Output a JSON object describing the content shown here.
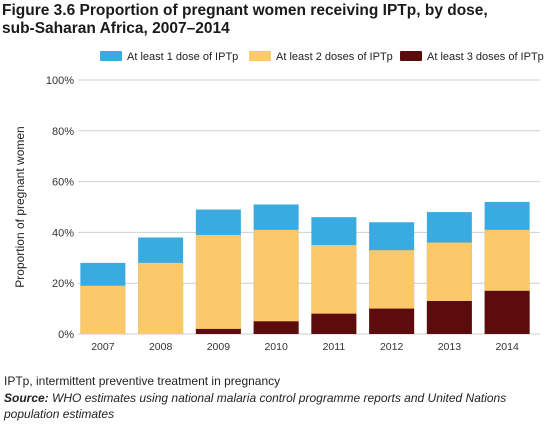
{
  "figure": {
    "title_line1": "Figure 3.6 Proportion of pregnant women receiving IPTp, by dose,",
    "title_line2": "sub-Saharan Africa, 2007–2014",
    "footnote": "IPTp, intermittent preventive treatment in pregnancy",
    "source_label": "Source:",
    "source_text": "WHO estimates using national malaria control programme reports and United Nations population estimates"
  },
  "chart_data": {
    "type": "bar",
    "stacking": "overlapping",
    "categories": [
      "2007",
      "2008",
      "2009",
      "2010",
      "2011",
      "2012",
      "2013",
      "2014"
    ],
    "ylabel": "Proportion of pregnant women",
    "ylim": [
      0,
      100
    ],
    "yticks": [
      "0%",
      "20%",
      "40%",
      "60%",
      "80%",
      "100%"
    ],
    "grid": true,
    "legend_position": "top",
    "series": [
      {
        "name": "At least 1 dose of IPTp",
        "color": "#3aabe0",
        "values": [
          28,
          38,
          49,
          51,
          46,
          44,
          48,
          52
        ]
      },
      {
        "name": "At least 2 doses of IPTp",
        "color": "#fcc96a",
        "values": [
          19,
          28,
          39,
          41,
          35,
          33,
          36,
          41
        ]
      },
      {
        "name": "At least 3 doses of IPTp",
        "color": "#5c0c0c",
        "values": [
          0,
          0,
          2,
          5,
          8,
          10,
          13,
          17
        ]
      }
    ]
  }
}
